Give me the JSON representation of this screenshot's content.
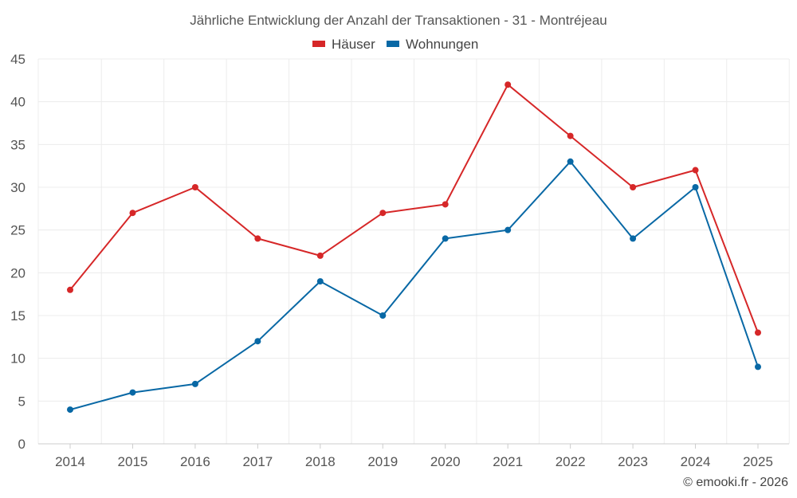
{
  "chart_data": {
    "type": "line",
    "title": "Jährliche Entwicklung der Anzahl der Transaktionen - 31 - Montréjeau",
    "xlabel": "",
    "ylabel": "",
    "categories": [
      "2014",
      "2015",
      "2016",
      "2017",
      "2018",
      "2019",
      "2020",
      "2021",
      "2022",
      "2023",
      "2024",
      "2025"
    ],
    "ylim": [
      0,
      45
    ],
    "yticks": [
      "0",
      "5",
      "10",
      "15",
      "20",
      "25",
      "30",
      "35",
      "40",
      "45"
    ],
    "grid": true,
    "legend_position": "top-center",
    "series": [
      {
        "name": "Häuser",
        "color": "#d62728",
        "values": [
          18,
          27,
          30,
          24,
          22,
          27,
          28,
          42,
          36,
          30,
          32,
          13
        ]
      },
      {
        "name": "Wohnungen",
        "color": "#0868a5",
        "values": [
          4,
          6,
          7,
          12,
          19,
          15,
          24,
          25,
          33,
          24,
          30,
          9
        ]
      }
    ]
  },
  "credit": "© emooki.fr - 2026"
}
